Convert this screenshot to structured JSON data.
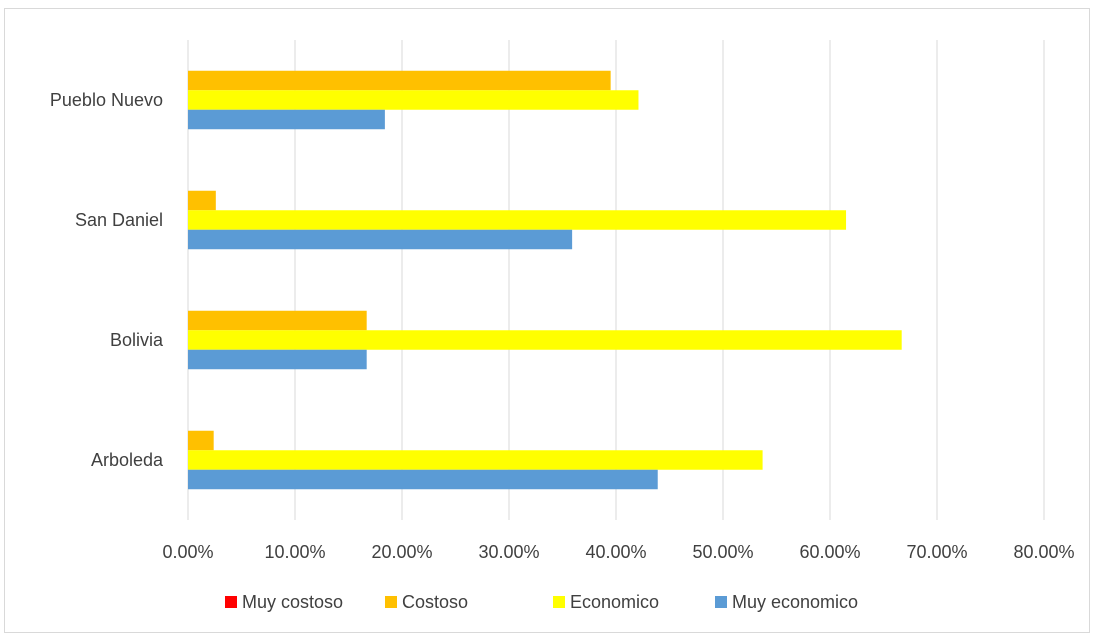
{
  "chart_data": {
    "type": "bar",
    "orientation": "horizontal",
    "categories": [
      "Arboleda",
      "Bolivia",
      "San Daniel",
      "Pueblo Nuevo"
    ],
    "series": [
      {
        "name": "Muy costoso",
        "color": "#ff0000",
        "values": [
          0,
          0,
          0,
          0
        ]
      },
      {
        "name": "Costoso",
        "color": "#ffc000",
        "values": [
          0.024,
          0.167,
          0.026,
          0.395
        ]
      },
      {
        "name": "Economico",
        "color": "#ffff00",
        "values": [
          0.537,
          0.667,
          0.615,
          0.421
        ]
      },
      {
        "name": "Muy economico",
        "color": "#5b9bd5",
        "values": [
          0.439,
          0.167,
          0.359,
          0.184
        ]
      }
    ],
    "xlim": [
      0,
      0.8
    ],
    "x_ticks": [
      "0.00%",
      "10.00%",
      "20.00%",
      "30.00%",
      "40.00%",
      "50.00%",
      "60.00%",
      "70.00%",
      "80.00%"
    ],
    "grid": true,
    "legend_position": "bottom",
    "title": "",
    "xlabel": "",
    "ylabel": ""
  }
}
